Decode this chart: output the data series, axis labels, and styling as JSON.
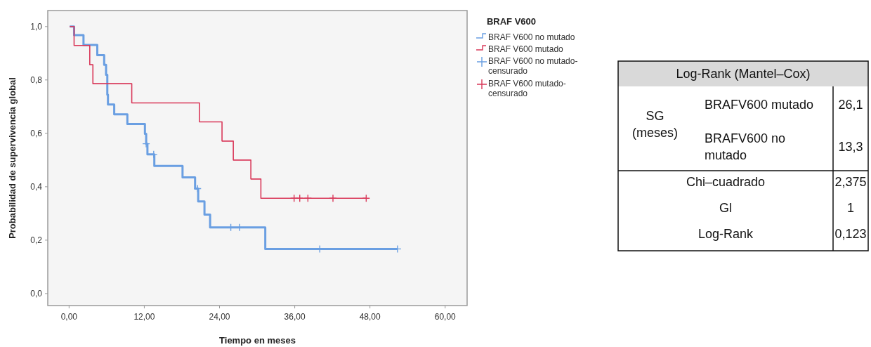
{
  "chart_data": [
    {
      "type": "step",
      "xlabel": "Tiempo en meses",
      "ylabel": "Probabilidad de supervivencia global",
      "legend_title": "BRAF V600",
      "legend": "right",
      "grid": false,
      "xlim": [
        -3.4,
        63.5
      ],
      "ylim": [
        -0.045,
        1.06
      ],
      "xticks": [
        {
          "value": 0,
          "label": "0,00"
        },
        {
          "value": 12,
          "label": "12,00"
        },
        {
          "value": 24,
          "label": "24,00"
        },
        {
          "value": 36,
          "label": "36,00"
        },
        {
          "value": 48,
          "label": "48,00"
        },
        {
          "value": 60,
          "label": "60,00"
        }
      ],
      "yticks": [
        {
          "value": 0,
          "label": "0,0"
        },
        {
          "value": 0.2,
          "label": "0,2"
        },
        {
          "value": 0.4,
          "label": "0,4"
        },
        {
          "value": 0.6,
          "label": "0,6"
        },
        {
          "value": 0.8,
          "label": "0,8"
        },
        {
          "value": 1,
          "label": "1,0"
        }
      ],
      "series": [
        {
          "name": "BRAF V600 no mutado",
          "type": "step",
          "color": "#6a9fe2",
          "x": [
            0.1,
            0.8,
            2.3,
            4.5,
            5.6,
            5.9,
            6.1,
            6.2,
            7.2,
            9.3,
            12.1,
            12.3,
            12.5,
            13.6,
            18.1,
            20.1,
            20.6,
            21.6,
            22.5,
            31.3,
            52.4
          ],
          "values": [
            1,
            0.968,
            0.931,
            0.893,
            0.857,
            0.819,
            0.745,
            0.708,
            0.671,
            0.635,
            0.598,
            0.561,
            0.521,
            0.478,
            0.435,
            0.393,
            0.345,
            0.296,
            0.248,
            0.167,
            0.167
          ]
        },
        {
          "name": "BRAF V600 mutado",
          "type": "step",
          "color": "#d9395a",
          "x": [
            0.1,
            0.8,
            3.3,
            3.8,
            10.0,
            20.8,
            24.4,
            26.2,
            29.0,
            30.6,
            47.4
          ],
          "values": [
            1,
            0.929,
            0.857,
            0.786,
            0.714,
            0.643,
            0.571,
            0.5,
            0.429,
            0.357,
            0.357
          ]
        },
        {
          "name": "BRAF V600 no mutado-censurado",
          "type": "scatter",
          "marker": "cross",
          "color": "#6a9fe2",
          "x": [
            12.3,
            13.5,
            20.5,
            25.8,
            27.2,
            40.0,
            52.4
          ],
          "values": [
            0.561,
            0.521,
            0.393,
            0.248,
            0.248,
            0.167,
            0.167
          ]
        },
        {
          "name": "BRAF V600 mutado-censurado",
          "type": "scatter",
          "marker": "cross",
          "color": "#d9395a",
          "x": [
            35.9,
            36.8,
            38.1,
            42.1,
            47.4
          ],
          "values": [
            0.357,
            0.357,
            0.357,
            0.357,
            0.357
          ]
        }
      ]
    },
    {
      "type": "other",
      "title": "Log-Rank (Mantel–Cox)",
      "annotations": [
        "SG (meses)",
        "BRAFV600 mutado",
        "26,1",
        "BRAFV600 no mutado",
        "13,3",
        "Chi–cuadrado",
        "2,375",
        "Gl",
        "1",
        "Log-Rank",
        "0,123"
      ]
    }
  ]
}
